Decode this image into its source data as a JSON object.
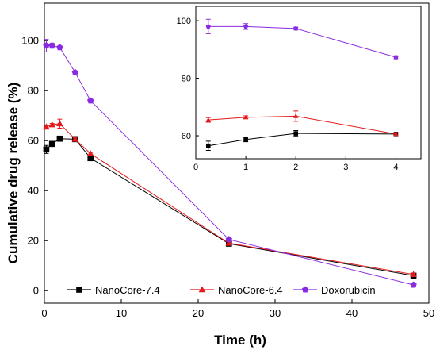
{
  "chart_data": [
    {
      "type": "line",
      "panel": "main",
      "xlabel": "Time (h)",
      "ylabel": "Cumulative drug release (%)",
      "xlim": [
        0,
        50
      ],
      "ylim": [
        -5,
        115
      ],
      "xticks": [
        0,
        10,
        20,
        30,
        40,
        50
      ],
      "yticks": [
        0,
        20,
        40,
        60,
        80,
        100
      ],
      "grid": false,
      "legend_position": "bottom",
      "series": [
        {
          "name": "NanoCore-7.4",
          "color": "#000000",
          "marker": "square",
          "x": [
            0.25,
            1,
            2,
            4,
            6,
            24,
            48
          ],
          "y": [
            56.5,
            58.7,
            60.8,
            60.6,
            53.0,
            18.8,
            6.0
          ],
          "err": [
            1.6,
            0.8,
            1.0,
            0.4,
            0.5,
            0.5,
            0.6
          ]
        },
        {
          "name": "NanoCore-6.4",
          "color": "#e31a1c",
          "marker": "triangle",
          "x": [
            0.25,
            1,
            2,
            4,
            6,
            24,
            48
          ],
          "y": [
            65.5,
            66.4,
            66.8,
            60.6,
            54.8,
            19.0,
            6.5
          ],
          "err": [
            0.8,
            0.5,
            1.8,
            0.5,
            0.5,
            0.5,
            0.5
          ]
        },
        {
          "name": "Doxorubicin",
          "color": "#8a2be2",
          "marker": "pentagon",
          "x": [
            0.25,
            1,
            2,
            4,
            6,
            24,
            48
          ],
          "y": [
            98.0,
            98.0,
            97.3,
            87.3,
            76.0,
            20.5,
            2.3
          ],
          "err": [
            2.5,
            1.0,
            0.5,
            0.5,
            0.5,
            0.5,
            0.4
          ]
        }
      ]
    },
    {
      "type": "line",
      "panel": "inset",
      "xlim": [
        0,
        4.5
      ],
      "ylim": [
        52,
        105
      ],
      "xticks": [
        0,
        1,
        2,
        3,
        4
      ],
      "yticks": [
        60,
        80,
        100
      ],
      "grid": false,
      "series": [
        {
          "name": "NanoCore-7.4",
          "color": "#000000",
          "marker": "square",
          "x": [
            0.25,
            1,
            2,
            4
          ],
          "y": [
            56.5,
            58.7,
            60.8,
            60.6
          ],
          "err": [
            1.6,
            0.8,
            1.0,
            0.4
          ]
        },
        {
          "name": "NanoCore-6.4",
          "color": "#e31a1c",
          "marker": "triangle",
          "x": [
            0.25,
            1,
            2,
            4
          ],
          "y": [
            65.5,
            66.4,
            66.8,
            60.6
          ],
          "err": [
            0.8,
            0.5,
            1.8,
            0.5
          ]
        },
        {
          "name": "Doxorubicin",
          "color": "#8a2be2",
          "marker": "pentagon",
          "x": [
            0.25,
            1,
            2,
            4
          ],
          "y": [
            98.0,
            98.0,
            97.3,
            87.3
          ],
          "err": [
            2.5,
            1.0,
            0.5,
            0.5
          ]
        }
      ]
    }
  ]
}
